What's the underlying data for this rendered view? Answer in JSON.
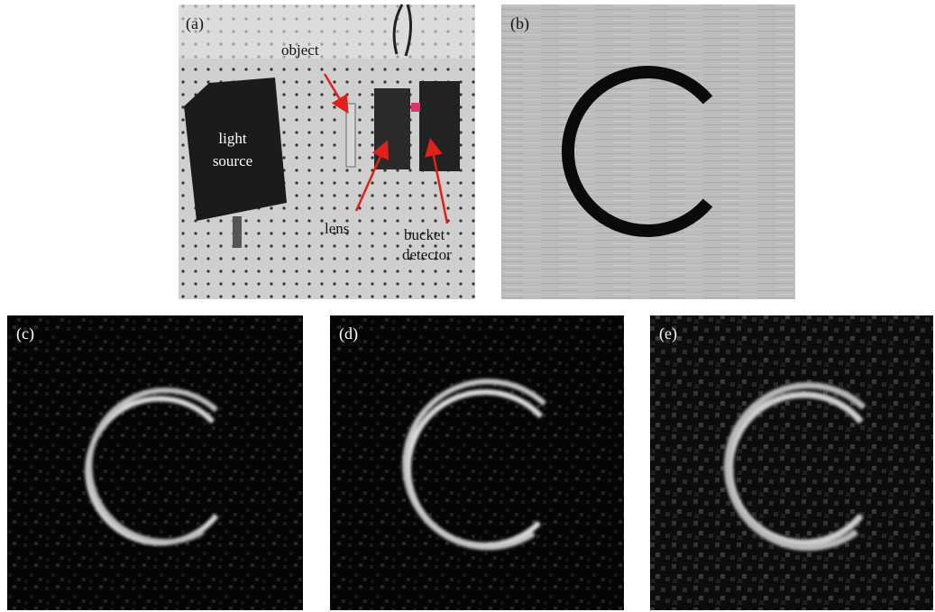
{
  "panels": [
    {
      "label": "(a)",
      "annotations": [
        "object",
        "light",
        "source",
        "lens",
        "bucket",
        "detector"
      ]
    },
    {
      "label": "(b)"
    },
    {
      "label": "(c)"
    },
    {
      "label": "(d)"
    },
    {
      "label": "(e)"
    }
  ]
}
